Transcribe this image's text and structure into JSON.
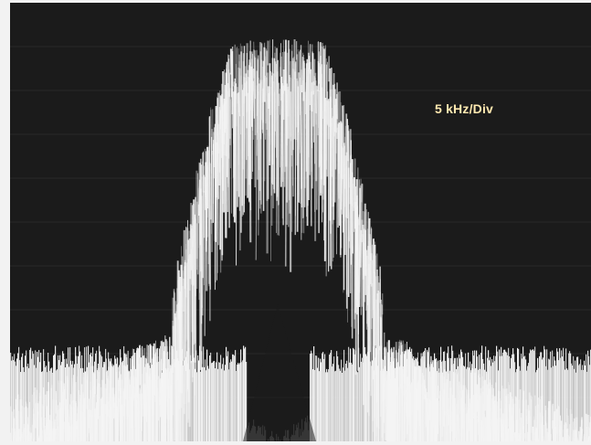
{
  "screen": {
    "scale_label": "5 kHz/Div"
  },
  "colors": {
    "background": "#1b1b1b",
    "trace": "#f4f4f4",
    "label": "#ffe9b0"
  }
}
